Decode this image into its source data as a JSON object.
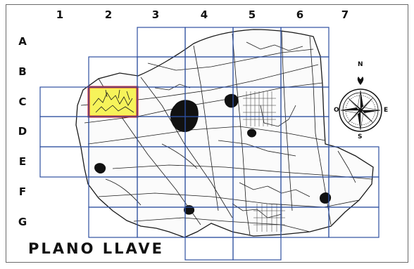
{
  "map": {
    "title": "PLANO LLAVE",
    "columns": [
      "1",
      "2",
      "3",
      "4",
      "5",
      "6",
      "7"
    ],
    "rows": [
      "A",
      "B",
      "C",
      "D",
      "E",
      "F",
      "G"
    ],
    "highlighted_cell": {
      "column": "2",
      "row": "C"
    },
    "compass": {
      "north": "N",
      "south": "S",
      "east": "E",
      "west": "O"
    },
    "colors": {
      "grid": "#2e4fa0",
      "highlight_fill": "#f6f35a",
      "highlight_border": "#e02020",
      "map_ink": "#1a1a1a"
    }
  }
}
